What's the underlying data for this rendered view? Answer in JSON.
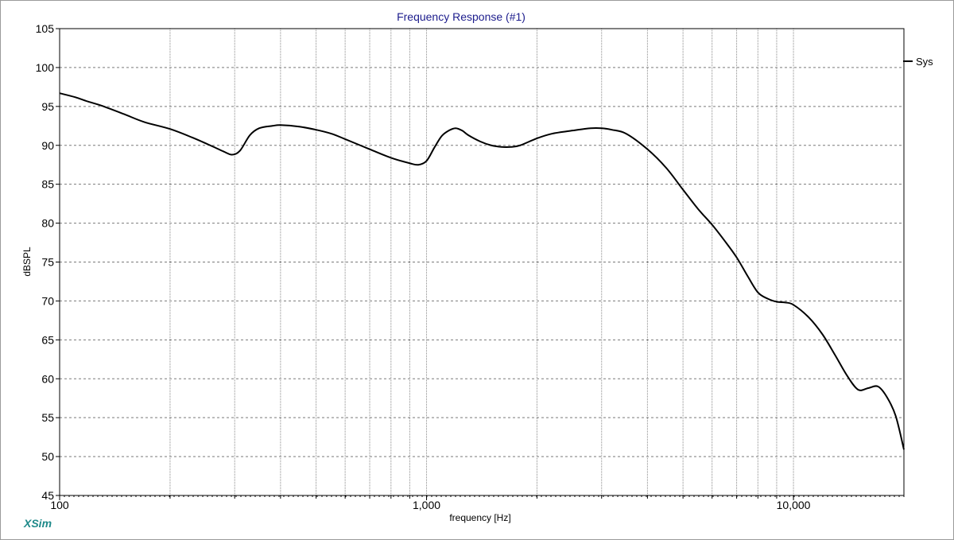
{
  "chart_data": {
    "type": "line",
    "title": "Frequency Response (#1)",
    "xlabel": "frequency [Hz]",
    "ylabel": "dBSPL",
    "xscale": "log",
    "xlim": [
      100,
      20000
    ],
    "ylim": [
      45,
      105
    ],
    "yticks": [
      45,
      50,
      55,
      60,
      65,
      70,
      75,
      80,
      85,
      90,
      95,
      100,
      105
    ],
    "xtick_labels": [
      {
        "value": 100,
        "label": "100"
      },
      {
        "value": 1000,
        "label": "1,000"
      },
      {
        "value": 10000,
        "label": "10,000"
      }
    ],
    "grid": true,
    "legend_position": "right",
    "series": [
      {
        "name": "Sys",
        "color": "#000000",
        "x": [
          100,
          110,
          120,
          130,
          150,
          170,
          200,
          230,
          260,
          280,
          295,
          310,
          330,
          350,
          380,
          400,
          450,
          500,
          550,
          600,
          700,
          800,
          900,
          950,
          1000,
          1050,
          1100,
          1150,
          1200,
          1250,
          1300,
          1400,
          1500,
          1600,
          1700,
          1800,
          2000,
          2200,
          2500,
          2800,
          3000,
          3200,
          3500,
          4000,
          4500,
          5000,
          5500,
          6000,
          6500,
          7000,
          7500,
          8000,
          8500,
          9000,
          9500,
          10000,
          11000,
          12000,
          13000,
          14000,
          15000,
          16000,
          17000,
          18000,
          19000,
          20000
        ],
        "y": [
          96.7,
          96.2,
          95.6,
          95.1,
          94.0,
          93.0,
          92.1,
          91.0,
          89.9,
          89.2,
          88.8,
          89.3,
          91.3,
          92.2,
          92.5,
          92.6,
          92.4,
          92.0,
          91.5,
          90.8,
          89.5,
          88.4,
          87.7,
          87.5,
          88.0,
          89.7,
          91.2,
          91.9,
          92.2,
          91.9,
          91.3,
          90.5,
          90.0,
          89.8,
          89.8,
          90.0,
          90.9,
          91.5,
          91.9,
          92.2,
          92.2,
          92.0,
          91.5,
          89.5,
          87.1,
          84.3,
          81.8,
          79.8,
          77.7,
          75.6,
          73.2,
          71.1,
          70.3,
          69.9,
          69.8,
          69.5,
          67.9,
          65.7,
          63.0,
          60.4,
          58.6,
          58.8,
          59.0,
          57.6,
          55.2,
          50.9
        ]
      }
    ]
  },
  "branding": {
    "logo_text": "XSim"
  }
}
